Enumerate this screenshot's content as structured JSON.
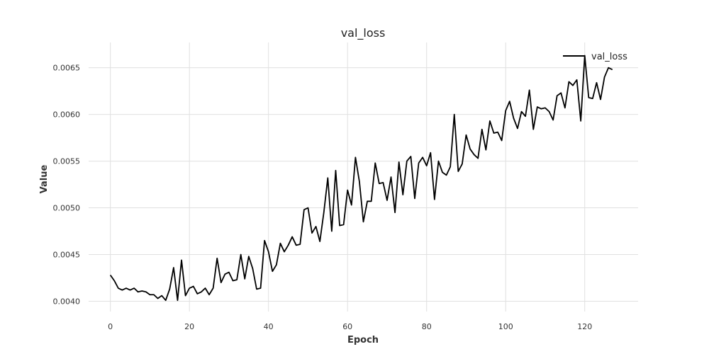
{
  "chart_data": {
    "type": "line",
    "title": "val_loss",
    "xlabel": "Epoch",
    "ylabel": "Value",
    "xlim": [
      -5.5,
      133.5
    ],
    "ylim": [
      0.00389,
      0.00677
    ],
    "xticks": [
      0,
      20,
      40,
      60,
      80,
      100,
      120
    ],
    "xtick_labels": [
      "0",
      "20",
      "40",
      "60",
      "80",
      "100",
      "120"
    ],
    "yticks": [
      0.004,
      0.0045,
      0.005,
      0.0055,
      0.006,
      0.0065
    ],
    "ytick_labels": [
      "0.0040",
      "0.0045",
      "0.0050",
      "0.0055",
      "0.0060",
      "0.0065"
    ],
    "grid": true,
    "legend_position": "top-right",
    "series": [
      {
        "name": "val_loss",
        "color": "#000000",
        "x": [
          0,
          1,
          2,
          3,
          4,
          5,
          6,
          7,
          8,
          9,
          10,
          11,
          12,
          13,
          14,
          15,
          16,
          17,
          18,
          19,
          20,
          21,
          22,
          23,
          24,
          25,
          26,
          27,
          28,
          29,
          30,
          31,
          32,
          33,
          34,
          35,
          36,
          37,
          38,
          39,
          40,
          41,
          42,
          43,
          44,
          45,
          46,
          47,
          48,
          49,
          50,
          51,
          52,
          53,
          54,
          55,
          56,
          57,
          58,
          59,
          60,
          61,
          62,
          63,
          64,
          65,
          66,
          67,
          68,
          69,
          70,
          71,
          72,
          73,
          74,
          75,
          76,
          77,
          78,
          79,
          80,
          81,
          82,
          83,
          84,
          85,
          86,
          87,
          88,
          89,
          90,
          91,
          92,
          93,
          94,
          95,
          96,
          97,
          98,
          99,
          100,
          101,
          102,
          103,
          104,
          105,
          106,
          107,
          108,
          109,
          110,
          111,
          112,
          113,
          114,
          115,
          116,
          117,
          118,
          119,
          120,
          121,
          122,
          123,
          124,
          125,
          126,
          127
        ],
        "y": [
          0.00428,
          0.00422,
          0.00414,
          0.00412,
          0.00414,
          0.00412,
          0.00414,
          0.0041,
          0.00411,
          0.0041,
          0.00407,
          0.00407,
          0.00403,
          0.00406,
          0.00401,
          0.00413,
          0.00436,
          0.00401,
          0.00444,
          0.00406,
          0.00414,
          0.00416,
          0.00408,
          0.0041,
          0.00414,
          0.00407,
          0.00414,
          0.00446,
          0.0042,
          0.00429,
          0.00431,
          0.00422,
          0.00423,
          0.0045,
          0.00424,
          0.00448,
          0.00435,
          0.00413,
          0.00414,
          0.00465,
          0.00453,
          0.00432,
          0.00439,
          0.00462,
          0.00453,
          0.0046,
          0.00469,
          0.0046,
          0.00461,
          0.00498,
          0.005,
          0.00473,
          0.0048,
          0.00464,
          0.00495,
          0.00532,
          0.00475,
          0.0054,
          0.00481,
          0.00482,
          0.00519,
          0.00503,
          0.00554,
          0.00528,
          0.00485,
          0.00507,
          0.00507,
          0.00548,
          0.00526,
          0.00527,
          0.00508,
          0.00533,
          0.00495,
          0.00549,
          0.00514,
          0.0055,
          0.00555,
          0.0051,
          0.00548,
          0.00554,
          0.00545,
          0.00559,
          0.00509,
          0.0055,
          0.00538,
          0.00535,
          0.00544,
          0.006,
          0.00539,
          0.00547,
          0.00578,
          0.00563,
          0.00557,
          0.00553,
          0.00584,
          0.00562,
          0.00593,
          0.0058,
          0.00581,
          0.00572,
          0.00604,
          0.00614,
          0.00596,
          0.00585,
          0.00603,
          0.00598,
          0.00626,
          0.00584,
          0.00608,
          0.00606,
          0.00607,
          0.00603,
          0.00594,
          0.0062,
          0.00623,
          0.00607,
          0.00635,
          0.00631,
          0.00637,
          0.00593,
          0.00663,
          0.00618,
          0.00617,
          0.00634,
          0.00616,
          0.0064,
          0.0065,
          0.00648
        ]
      }
    ]
  }
}
